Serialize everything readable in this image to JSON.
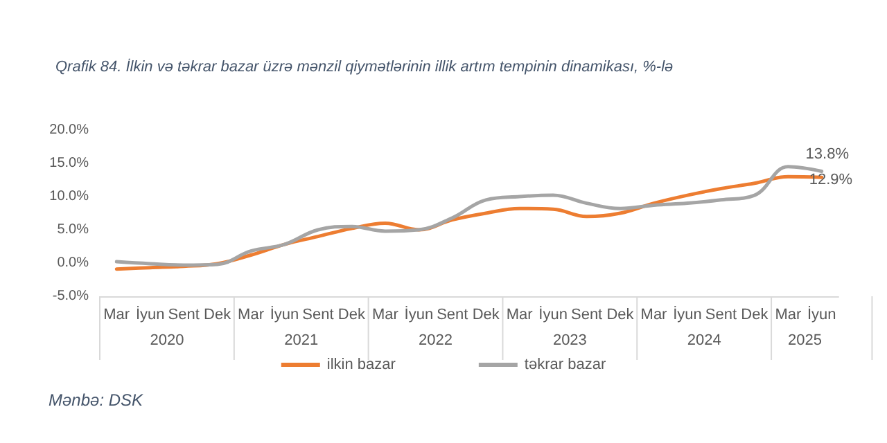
{
  "chart_data": {
    "type": "line",
    "title": "Qrafik 84. İlkin və təkrar bazar üzrə mənzil qiymətlərinin illik artım tempinin dinamikası, %-lə",
    "categories": [
      "Mar",
      "İyun",
      "Sent",
      "Dek",
      "Mar",
      "İyun",
      "Sent",
      "Dek",
      "Mar",
      "İyun",
      "Sent",
      "Dek",
      "Mar",
      "İyun",
      "Sent",
      "Dek",
      "Mar",
      "İyun",
      "Sent",
      "Dek",
      "Mar",
      "İyun"
    ],
    "series": [
      {
        "name": "ilkin bazar",
        "color": "#ed7d31",
        "values": [
          -0.9,
          -0.7,
          -0.5,
          -0.1,
          1.2,
          2.8,
          4.0,
          5.2,
          6.0,
          5.0,
          6.5,
          7.5,
          8.2,
          8.1,
          7.0,
          7.5,
          9.0,
          10.2,
          11.2,
          12.0,
          13.0,
          12.9
        ],
        "value_labels": [
          null,
          null,
          null,
          null,
          null,
          null,
          null,
          null,
          null,
          null,
          null,
          null,
          null,
          null,
          null,
          null,
          null,
          null,
          null,
          null,
          null,
          "12.9%"
        ]
      },
      {
        "name": "təkrar bazar",
        "color": "#a5a5a5",
        "values": [
          0.2,
          -0.1,
          -0.3,
          -0.2,
          1.8,
          2.8,
          5.0,
          5.5,
          4.8,
          5.0,
          6.8,
          9.5,
          10.0,
          10.2,
          9.0,
          8.2,
          8.7,
          9.0,
          9.5,
          10.2,
          14.5,
          13.8
        ],
        "value_labels": [
          null,
          null,
          null,
          null,
          null,
          null,
          null,
          null,
          null,
          null,
          null,
          null,
          null,
          null,
          null,
          null,
          null,
          null,
          null,
          null,
          null,
          "13.8%"
        ]
      }
    ],
    "ylim": [
      -5,
      20
    ],
    "yticks": [
      {
        "value": -5,
        "label": "-5.0%"
      },
      {
        "value": 0,
        "label": "0.0%"
      },
      {
        "value": 5,
        "label": "5.0%"
      },
      {
        "value": 10,
        "label": "10.0%"
      },
      {
        "value": 15,
        "label": "15.0%"
      },
      {
        "value": 20,
        "label": "20.0%"
      }
    ],
    "annotations": [
      "2020",
      "2021",
      "2022",
      "2023",
      "2024",
      "2025",
      "Mənbə: DSK"
    ],
    "legend": "bottom",
    "grid": false,
    "marker": "none"
  }
}
